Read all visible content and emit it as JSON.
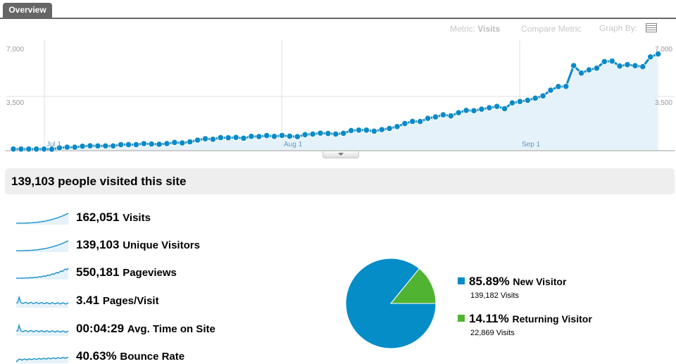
{
  "tabs": [
    {
      "label": "Overview",
      "active": true
    }
  ],
  "controls": {
    "metric_prefix": "Metric:",
    "metric_value": "Visits",
    "compare_metric": "Compare Metric",
    "graph_by": "Graph By:",
    "graph_by_icon": "list-icon"
  },
  "colors": {
    "line": "#0a8ac7",
    "area": "#e6f2f9",
    "new_visitor": "#058dc7",
    "returning_visitor": "#50b432"
  },
  "chart_data": [
    {
      "type": "line",
      "y_ticks": [
        "7,000",
        "3,500"
      ],
      "ylim": [
        0,
        7000
      ],
      "x_ticks": [
        "Jul 1",
        "Aug 1",
        "Sep 1"
      ],
      "x_start": "Jun 27",
      "x_end": "Sep 20",
      "grid": true,
      "values": [
        60,
        60,
        60,
        60,
        60,
        50,
        140,
        180,
        180,
        245,
        275,
        265,
        265,
        265,
        350,
        350,
        350,
        415,
        390,
        370,
        420,
        490,
        460,
        530,
        645,
        735,
        700,
        810,
        800,
        820,
        770,
        890,
        880,
        940,
        890,
        950,
        900,
        870,
        1000,
        1040,
        1100,
        1080,
        1040,
        1090,
        1270,
        1300,
        1300,
        1230,
        1330,
        1410,
        1530,
        1730,
        1870,
        1860,
        2070,
        2160,
        2300,
        2230,
        2440,
        2590,
        2570,
        2670,
        2760,
        2850,
        2700,
        3080,
        3170,
        3250,
        3390,
        3540,
        3910,
        4150,
        4160,
        5520,
        5030,
        5240,
        5350,
        5780,
        5810,
        5490,
        5580,
        5510,
        5450,
        6090,
        6280
      ]
    },
    {
      "type": "pie",
      "slices": [
        {
          "label": "New Visitor",
          "percent": "85.89%",
          "value": 85.89,
          "visits": "139,182 Visits"
        },
        {
          "label": "Returning Visitor",
          "percent": "14.11%",
          "value": 14.11,
          "visits": "22,869 Visits"
        }
      ]
    }
  ],
  "summary": {
    "headline": "139,103 people visited this site"
  },
  "metrics": [
    {
      "value": "162,051",
      "label": "Visits"
    },
    {
      "value": "139,103",
      "label": "Unique Visitors"
    },
    {
      "value": "550,181",
      "label": "Pageviews"
    },
    {
      "value": "3.41",
      "label": "Pages/Visit"
    },
    {
      "value": "00:04:29",
      "label": "Avg. Time on Site"
    },
    {
      "value": "40.63%",
      "label": "Bounce Rate"
    }
  ]
}
